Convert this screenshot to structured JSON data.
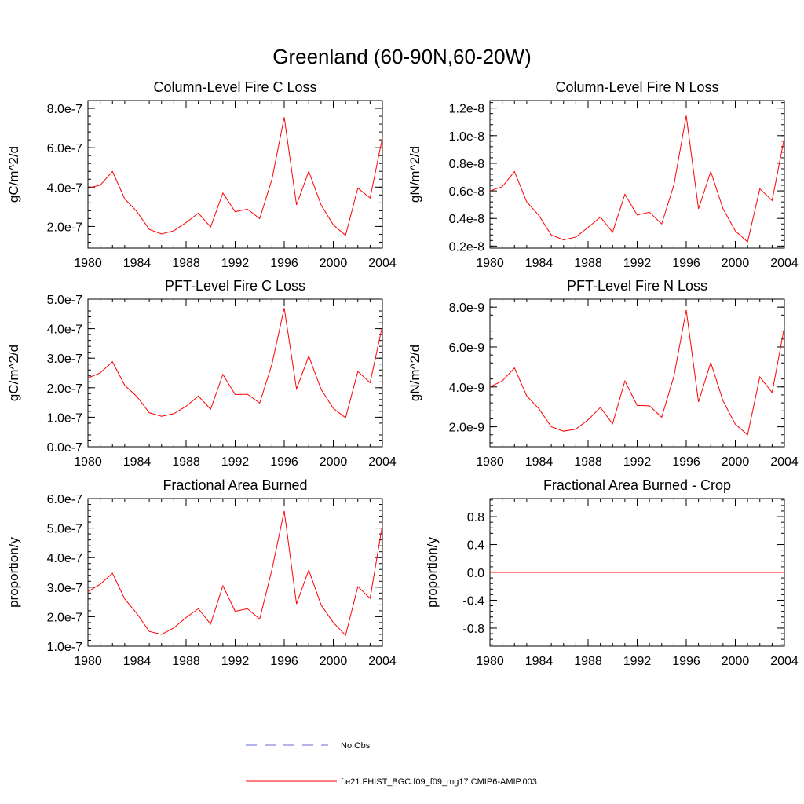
{
  "title": "Greenland (60-90N,60-20W)",
  "colors": {
    "series": "#ff0000",
    "obs": "#6a6ad8",
    "axis": "#000000"
  },
  "legend": [
    {
      "label": "No Obs",
      "style": "dashed",
      "color": "#6a6ad8"
    },
    {
      "label": "f.e21.FHIST_BGC.f09_f09_mg17.CMIP6-AMIP.003",
      "style": "solid",
      "color": "#ff0000"
    }
  ],
  "chart_data": [
    {
      "type": "line",
      "title": "Column-Level Fire C Loss",
      "ylabel": "gC/m^2/d",
      "x": [
        1980,
        1981,
        1982,
        1983,
        1984,
        1985,
        1986,
        1987,
        1988,
        1989,
        1990,
        1991,
        1992,
        1993,
        1994,
        1995,
        1996,
        1997,
        1998,
        1999,
        2000,
        2001,
        2002,
        2003,
        2004
      ],
      "values": [
        3.95e-07,
        4.1e-07,
        4.8e-07,
        3.4e-07,
        2.75e-07,
        1.85e-07,
        1.62e-07,
        1.78e-07,
        2.2e-07,
        2.68e-07,
        1.97e-07,
        3.7e-07,
        2.75e-07,
        2.88e-07,
        2.4e-07,
        4.4e-07,
        7.55e-07,
        3.1e-07,
        4.8e-07,
        3.1e-07,
        2.08e-07,
        1.55e-07,
        3.95e-07,
        3.45e-07,
        6.5e-07
      ],
      "xlim": [
        1980,
        2004
      ],
      "ylim": [
        9e-08,
        8.4e-07
      ],
      "yticks": [
        2e-07,
        4e-07,
        6e-07,
        8e-07
      ],
      "ytick_labels": [
        "2.0e-7",
        "4.0e-7",
        "6.0e-7",
        "8.0e-7"
      ],
      "xticks": [
        1980,
        1984,
        1988,
        1992,
        1996,
        2000,
        2004
      ],
      "xtick_labels": [
        "1980",
        "1984",
        "1988",
        "1992",
        "1996",
        "2000",
        "2004"
      ]
    },
    {
      "type": "line",
      "title": "Column-Level Fire N Loss",
      "ylabel": "gN/m^2/d",
      "x": [
        1980,
        1981,
        1982,
        1983,
        1984,
        1985,
        1986,
        1987,
        1988,
        1989,
        1990,
        1991,
        1992,
        1993,
        1994,
        1995,
        1996,
        1997,
        1998,
        1999,
        2000,
        2001,
        2002,
        2003,
        2004
      ],
      "values": [
        6e-09,
        6.3e-09,
        7.4e-09,
        5.2e-09,
        4.2e-09,
        2.8e-09,
        2.45e-09,
        2.65e-09,
        3.35e-09,
        4.1e-09,
        3e-09,
        5.75e-09,
        4.25e-09,
        4.45e-09,
        3.6e-09,
        6.45e-09,
        1.145e-08,
        4.7e-09,
        7.4e-09,
        4.7e-09,
        3.1e-09,
        2.3e-09,
        6.15e-09,
        5.3e-09,
        9.85e-09
      ],
      "xlim": [
        1980,
        2004
      ],
      "ylim": [
        1.85e-09,
        1.255e-08
      ],
      "yticks": [
        2e-09,
        4e-09,
        6e-09,
        8e-09,
        1e-08,
        1.2e-08
      ],
      "ytick_labels": [
        "0.2e-8",
        "0.4e-8",
        "0.6e-8",
        "0.8e-8",
        "1.0e-8",
        "1.2e-8"
      ],
      "xticks": [
        1980,
        1984,
        1988,
        1992,
        1996,
        2000,
        2004
      ],
      "xtick_labels": [
        "1980",
        "1984",
        "1988",
        "1992",
        "1996",
        "2000",
        "2004"
      ]
    },
    {
      "type": "line",
      "title": "PFT-Level Fire C Loss",
      "ylabel": "gC/m^2/d",
      "x": [
        1980,
        1981,
        1982,
        1983,
        1984,
        1985,
        1986,
        1987,
        1988,
        1989,
        1990,
        1991,
        1992,
        1993,
        1994,
        1995,
        1996,
        1997,
        1998,
        1999,
        2000,
        2001,
        2002,
        2003,
        2004
      ],
      "values": [
        2.33e-07,
        2.5e-07,
        2.88e-07,
        2.08e-07,
        1.7e-07,
        1.15e-07,
        1.03e-07,
        1.12e-07,
        1.37e-07,
        1.72e-07,
        1.27e-07,
        2.45e-07,
        1.77e-07,
        1.78e-07,
        1.48e-07,
        2.8e-07,
        4.7e-07,
        1.96e-07,
        3.07e-07,
        1.95e-07,
        1.3e-07,
        9.8e-08,
        2.55e-07,
        2.17e-07,
        4.1e-07
      ],
      "xlim": [
        1980,
        2004
      ],
      "ylim": [
        0.0,
        5e-07
      ],
      "yticks": [
        0.0,
        1e-07,
        2e-07,
        3e-07,
        4e-07,
        5e-07
      ],
      "ytick_labels": [
        "0.0e-7",
        "1.0e-7",
        "2.0e-7",
        "3.0e-7",
        "4.0e-7",
        "5.0e-7"
      ],
      "xticks": [
        1980,
        1984,
        1988,
        1992,
        1996,
        2000,
        2004
      ],
      "xtick_labels": [
        "1980",
        "1984",
        "1988",
        "1992",
        "1996",
        "2000",
        "2004"
      ]
    },
    {
      "type": "line",
      "title": "PFT-Level Fire N Loss",
      "ylabel": "gN/m^2/d",
      "x": [
        1980,
        1981,
        1982,
        1983,
        1984,
        1985,
        1986,
        1987,
        1988,
        1989,
        1990,
        1991,
        1992,
        1993,
        1994,
        1995,
        1996,
        1997,
        1998,
        1999,
        2000,
        2001,
        2002,
        2003,
        2004
      ],
      "values": [
        4e-09,
        4.3e-09,
        4.95e-09,
        3.55e-09,
        2.9e-09,
        2e-09,
        1.78e-09,
        1.88e-09,
        2.35e-09,
        2.97e-09,
        2.15e-09,
        4.3e-09,
        3.07e-09,
        3.05e-09,
        2.48e-09,
        4.55e-09,
        7.85e-09,
        3.25e-09,
        5.22e-09,
        3.3e-09,
        2.13e-09,
        1.6e-09,
        4.5e-09,
        3.72e-09,
        7e-09
      ],
      "xlim": [
        1980,
        2004
      ],
      "ylim": [
        1e-09,
        8.4e-09
      ],
      "yticks": [
        2e-09,
        4e-09,
        6e-09,
        8e-09
      ],
      "ytick_labels": [
        "2.0e-9",
        "4.0e-9",
        "6.0e-9",
        "8.0e-9"
      ],
      "xticks": [
        1980,
        1984,
        1988,
        1992,
        1996,
        2000,
        2004
      ],
      "xtick_labels": [
        "1980",
        "1984",
        "1988",
        "1992",
        "1996",
        "2000",
        "2004"
      ]
    },
    {
      "type": "line",
      "title": "Fractional Area Burned",
      "ylabel": "proportion/y",
      "x": [
        1980,
        1981,
        1982,
        1983,
        1984,
        1985,
        1986,
        1987,
        1988,
        1989,
        1990,
        1991,
        1992,
        1993,
        1994,
        1995,
        1996,
        1997,
        1998,
        1999,
        2000,
        2001,
        2002,
        2003,
        2004
      ],
      "values": [
        2.85e-07,
        3.1e-07,
        3.47e-07,
        2.6e-07,
        2.1e-07,
        1.5e-07,
        1.4e-07,
        1.62e-07,
        1.97e-07,
        2.27e-07,
        1.75e-07,
        3.05e-07,
        2.18e-07,
        2.27e-07,
        1.92e-07,
        3.6e-07,
        5.58e-07,
        2.43e-07,
        3.58e-07,
        2.4e-07,
        1.8e-07,
        1.37e-07,
        3.02e-07,
        2.62e-07,
        5.1e-07
      ],
      "xlim": [
        1980,
        2004
      ],
      "ylim": [
        1e-07,
        6e-07
      ],
      "yticks": [
        1e-07,
        2e-07,
        3e-07,
        4e-07,
        5e-07,
        6e-07
      ],
      "ytick_labels": [
        "1.0e-7",
        "2.0e-7",
        "3.0e-7",
        "4.0e-7",
        "5.0e-7",
        "6.0e-7"
      ],
      "xticks": [
        1980,
        1984,
        1988,
        1992,
        1996,
        2000,
        2004
      ],
      "xtick_labels": [
        "1980",
        "1984",
        "1988",
        "1992",
        "1996",
        "2000",
        "2004"
      ]
    },
    {
      "type": "line",
      "title": "Fractional Area Burned - Crop",
      "ylabel": "proportion/y",
      "x": [
        1980,
        1981,
        1982,
        1983,
        1984,
        1985,
        1986,
        1987,
        1988,
        1989,
        1990,
        1991,
        1992,
        1993,
        1994,
        1995,
        1996,
        1997,
        1998,
        1999,
        2000,
        2001,
        2002,
        2003,
        2004
      ],
      "values": [
        0,
        0,
        0,
        0,
        0,
        0,
        0,
        0,
        0,
        0,
        0,
        0,
        0,
        0,
        0,
        0,
        0,
        0,
        0,
        0,
        0,
        0,
        0,
        0,
        0
      ],
      "xlim": [
        1980,
        2004
      ],
      "ylim": [
        -1.06,
        1.06
      ],
      "yticks": [
        -0.8,
        -0.4,
        0.0,
        0.4,
        0.8
      ],
      "ytick_labels": [
        "-0.8",
        "-0.4",
        "0.0",
        "0.4",
        "0.8"
      ],
      "xticks": [
        1980,
        1984,
        1988,
        1992,
        1996,
        2000,
        2004
      ],
      "xtick_labels": [
        "1980",
        "1984",
        "1988",
        "1992",
        "1996",
        "2000",
        "2004"
      ]
    }
  ]
}
